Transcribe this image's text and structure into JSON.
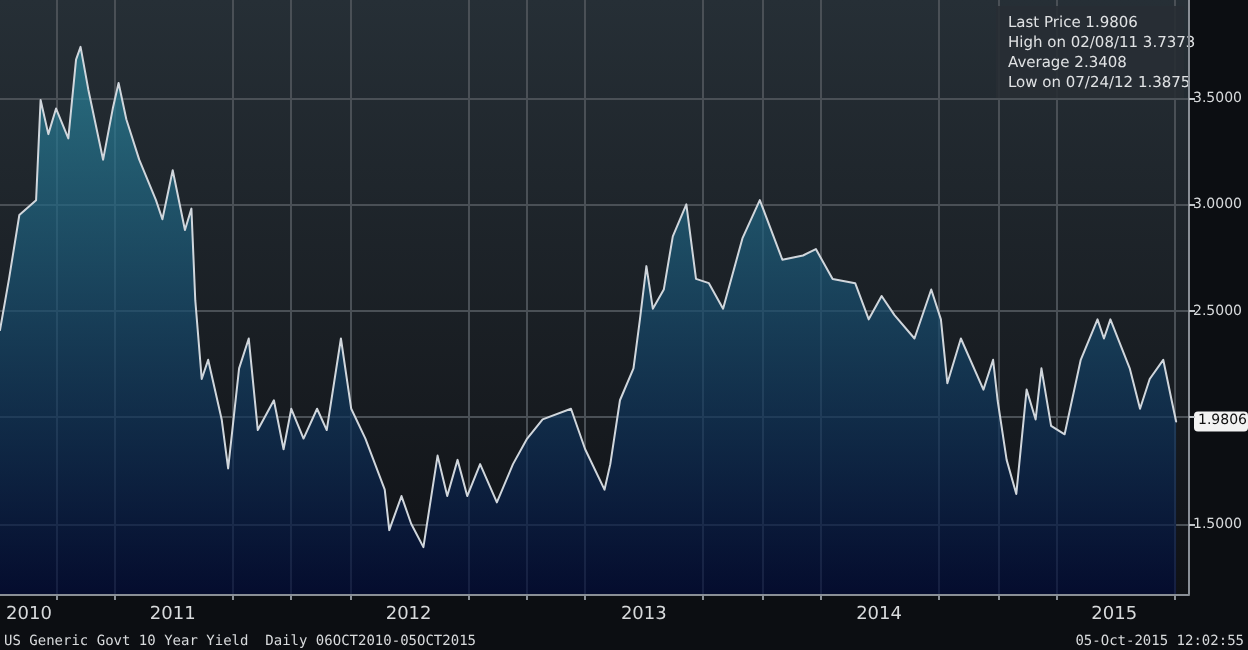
{
  "chart_data": {
    "type": "area",
    "x": [
      "2010-10-06",
      "2010-10-20",
      "2010-11-05",
      "2010-12-01",
      "2010-12-08",
      "2010-12-20",
      "2011-01-01",
      "2011-01-20",
      "2011-02-01",
      "2011-02-08",
      "2011-02-20",
      "2011-03-15",
      "2011-03-30",
      "2011-04-08",
      "2011-04-20",
      "2011-05-10",
      "2011-06-05",
      "2011-06-15",
      "2011-07-01",
      "2011-07-20",
      "2011-07-30",
      "2011-08-05",
      "2011-08-15",
      "2011-08-25",
      "2011-09-15",
      "2011-09-25",
      "2011-10-12",
      "2011-10-27",
      "2011-11-10",
      "2011-12-05",
      "2011-12-20",
      "2012-01-01",
      "2012-01-20",
      "2012-02-10",
      "2012-02-25",
      "2012-03-18",
      "2012-04-03",
      "2012-04-25",
      "2012-05-25",
      "2012-06-01",
      "2012-06-20",
      "2012-07-05",
      "2012-07-24",
      "2012-08-15",
      "2012-08-30",
      "2012-09-15",
      "2012-09-30",
      "2012-10-20",
      "2012-11-15",
      "2012-12-10",
      "2013-01-01",
      "2013-01-25",
      "2013-03-10",
      "2013-04-01",
      "2013-05-01",
      "2013-05-10",
      "2013-05-25",
      "2013-06-15",
      "2013-06-25",
      "2013-07-05",
      "2013-07-15",
      "2013-08-01",
      "2013-08-15",
      "2013-09-05",
      "2013-09-20",
      "2013-10-10",
      "2013-11-01",
      "2013-12-01",
      "2013-12-28",
      "2014-02-01",
      "2014-03-05",
      "2014-03-25",
      "2014-04-20",
      "2014-05-25",
      "2014-06-15",
      "2014-07-05",
      "2014-07-25",
      "2014-08-25",
      "2014-09-20",
      "2014-10-05",
      "2014-10-15",
      "2014-11-05",
      "2014-12-10",
      "2014-12-25",
      "2015-01-01",
      "2015-01-15",
      "2015-01-30",
      "2015-02-15",
      "2015-03-01",
      "2015-03-10",
      "2015-03-25",
      "2015-04-15",
      "2015-05-10",
      "2015-06-05",
      "2015-06-15",
      "2015-06-25",
      "2015-07-25",
      "2015-08-10",
      "2015-08-25",
      "2015-09-15",
      "2015-09-28",
      "2015-10-05"
    ],
    "series": [
      {
        "color": "#d0d6dc",
        "values": [
          2.41,
          2.65,
          2.95,
          3.02,
          3.49,
          3.33,
          3.45,
          3.31,
          3.68,
          3.74,
          3.54,
          3.21,
          3.45,
          3.57,
          3.4,
          3.21,
          3.02,
          2.93,
          3.16,
          2.88,
          2.98,
          2.55,
          2.18,
          2.27,
          1.99,
          1.76,
          2.23,
          2.37,
          1.94,
          2.08,
          1.85,
          2.04,
          1.9,
          2.04,
          1.94,
          2.37,
          2.04,
          1.9,
          1.66,
          1.47,
          1.63,
          1.5,
          1.39,
          1.82,
          1.63,
          1.8,
          1.63,
          1.78,
          1.6,
          1.78,
          1.9,
          1.99,
          2.04,
          1.85,
          1.66,
          1.78,
          2.08,
          2.23,
          2.46,
          2.71,
          2.51,
          2.6,
          2.85,
          3.0,
          2.65,
          2.63,
          2.51,
          2.84,
          3.02,
          2.74,
          2.76,
          2.79,
          2.65,
          2.63,
          2.46,
          2.57,
          2.48,
          2.37,
          2.6,
          2.46,
          2.16,
          2.37,
          2.13,
          2.27,
          2.08,
          1.8,
          1.64,
          2.13,
          1.99,
          2.23,
          1.96,
          1.92,
          2.27,
          2.46,
          2.37,
          2.46,
          2.23,
          2.04,
          2.18,
          2.27,
          2.08,
          1.98
        ]
      }
    ],
    "xlim": [
      "2010-10-06",
      "2015-10-25"
    ],
    "xticks": [
      {
        "value": "2010-11-20",
        "label": "2010"
      },
      {
        "value": "2011-01-01",
        "label": null
      },
      {
        "value": "2011-04-01",
        "label": null
      },
      {
        "value": "2011-07-01",
        "label": "2011"
      },
      {
        "value": "2011-10-01",
        "label": null
      },
      {
        "value": "2012-01-01",
        "label": null
      },
      {
        "value": "2012-04-01",
        "label": null
      },
      {
        "value": "2012-07-01",
        "label": "2012"
      },
      {
        "value": "2012-10-01",
        "label": null
      },
      {
        "value": "2013-01-01",
        "label": null
      },
      {
        "value": "2013-04-01",
        "label": null
      },
      {
        "value": "2013-07-01",
        "label": "2013"
      },
      {
        "value": "2013-10-01",
        "label": null
      },
      {
        "value": "2014-01-01",
        "label": null
      },
      {
        "value": "2014-04-01",
        "label": null
      },
      {
        "value": "2014-07-01",
        "label": "2014"
      },
      {
        "value": "2014-10-01",
        "label": null
      },
      {
        "value": "2015-01-01",
        "label": null
      },
      {
        "value": "2015-04-01",
        "label": null
      },
      {
        "value": "2015-07-01",
        "label": "2015"
      },
      {
        "value": "2015-10-01",
        "label": null
      }
    ],
    "ylim": [
      1.17,
      3.96
    ],
    "yticks": [
      {
        "value": 1.5,
        "label": "1.5000"
      },
      {
        "value": 2,
        "label": null
      },
      {
        "value": 2.5,
        "label": "2.5000"
      },
      {
        "value": 3,
        "label": "3.0000"
      },
      {
        "value": 3.5,
        "label": "3.5000"
      }
    ],
    "grid": true,
    "marker": "none",
    "line_style": "solid",
    "annotations": [
      "Last Price 1.9806",
      "High on 02/08/11 3.7373",
      "Average 2.3408",
      "Low on 07/24/12 1.3875",
      {
        "text": "1.9806",
        "x": "2015-10-05",
        "y": 1.9806
      },
      "US Generic Govt 10 Year Yield  Daily 06OCT2010-05OCT2015",
      "05-Oct-2015 12:02:55"
    ]
  }
}
